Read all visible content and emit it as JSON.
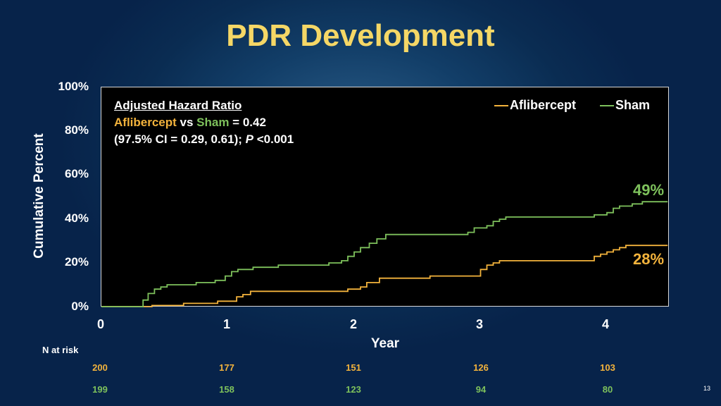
{
  "slide": {
    "title": "PDR Development",
    "page_number": "13"
  },
  "annotation": {
    "line1": "Adjusted Hazard Ratio",
    "afl_word": "Aflibercept",
    "vs_word": " vs ",
    "sham_word": "Sham",
    "hr_value": " = 0.42",
    "ci_text": "(97.5% CI = 0.29, 0.61); ",
    "p_label": "P",
    "p_value": " <0.001"
  },
  "colors": {
    "aflibercept": "#f3b33c",
    "sham": "#7ec15c",
    "title": "#f5d766",
    "plot_background": "#000000"
  },
  "chart_data": {
    "type": "line",
    "step": true,
    "title": "PDR Development",
    "xlabel": "Year",
    "ylabel": "Cumulative Percent",
    "xlim": [
      0,
      4.5
    ],
    "ylim": [
      0,
      100
    ],
    "x_ticks": [
      "0",
      "1",
      "2",
      "3",
      "4"
    ],
    "y_ticks": [
      "0%",
      "20%",
      "40%",
      "60%",
      "80%",
      "100%"
    ],
    "legend": {
      "position": "top-right",
      "entries": [
        "Aflibercept",
        "Sham"
      ]
    },
    "grid": false,
    "series": [
      {
        "name": "Aflibercept",
        "end_label": "28%",
        "points": [
          [
            0,
            0
          ],
          [
            0.35,
            0
          ],
          [
            0.4,
            0.5
          ],
          [
            0.62,
            0.5
          ],
          [
            0.65,
            1.5
          ],
          [
            0.88,
            1.5
          ],
          [
            0.92,
            2.5
          ],
          [
            1.02,
            2.5
          ],
          [
            1.07,
            4.5
          ],
          [
            1.12,
            5.5
          ],
          [
            1.18,
            7
          ],
          [
            1.55,
            7
          ],
          [
            1.9,
            7
          ],
          [
            1.95,
            8
          ],
          [
            2.05,
            9
          ],
          [
            2.1,
            11
          ],
          [
            2.2,
            13
          ],
          [
            2.55,
            13
          ],
          [
            2.6,
            14
          ],
          [
            2.95,
            14
          ],
          [
            3.0,
            17
          ],
          [
            3.05,
            19
          ],
          [
            3.1,
            20
          ],
          [
            3.15,
            21
          ],
          [
            3.5,
            21
          ],
          [
            3.85,
            21
          ],
          [
            3.9,
            23
          ],
          [
            3.95,
            24
          ],
          [
            4.0,
            25
          ],
          [
            4.05,
            26
          ],
          [
            4.1,
            27
          ],
          [
            4.15,
            28
          ],
          [
            4.48,
            28
          ]
        ]
      },
      {
        "name": "Sham",
        "end_label": "49%",
        "points": [
          [
            0,
            0
          ],
          [
            0.3,
            0
          ],
          [
            0.33,
            3
          ],
          [
            0.37,
            6
          ],
          [
            0.42,
            8
          ],
          [
            0.47,
            9
          ],
          [
            0.52,
            10
          ],
          [
            0.65,
            10
          ],
          [
            0.75,
            11
          ],
          [
            0.9,
            12
          ],
          [
            0.98,
            14
          ],
          [
            1.03,
            16
          ],
          [
            1.08,
            17
          ],
          [
            1.15,
            17
          ],
          [
            1.2,
            18
          ],
          [
            1.4,
            19
          ],
          [
            1.75,
            19
          ],
          [
            1.8,
            20
          ],
          [
            1.9,
            21
          ],
          [
            1.95,
            23
          ],
          [
            2.0,
            25
          ],
          [
            2.05,
            27
          ],
          [
            2.12,
            29
          ],
          [
            2.18,
            31
          ],
          [
            2.25,
            33
          ],
          [
            2.4,
            33
          ],
          [
            2.85,
            33
          ],
          [
            2.9,
            34
          ],
          [
            2.95,
            36
          ],
          [
            3.05,
            37
          ],
          [
            3.1,
            39
          ],
          [
            3.15,
            40
          ],
          [
            3.2,
            41
          ],
          [
            3.5,
            41
          ],
          [
            3.85,
            41
          ],
          [
            3.9,
            42
          ],
          [
            4.0,
            43
          ],
          [
            4.05,
            45
          ],
          [
            4.1,
            46
          ],
          [
            4.2,
            47
          ],
          [
            4.28,
            48
          ],
          [
            4.48,
            48
          ]
        ]
      }
    ],
    "n_at_risk": {
      "label": "N at risk",
      "years": [
        "0",
        "1",
        "2",
        "3",
        "4"
      ],
      "aflibercept": [
        "200",
        "177",
        "151",
        "126",
        "103"
      ],
      "sham": [
        "199",
        "158",
        "123",
        "94",
        "80"
      ]
    }
  }
}
